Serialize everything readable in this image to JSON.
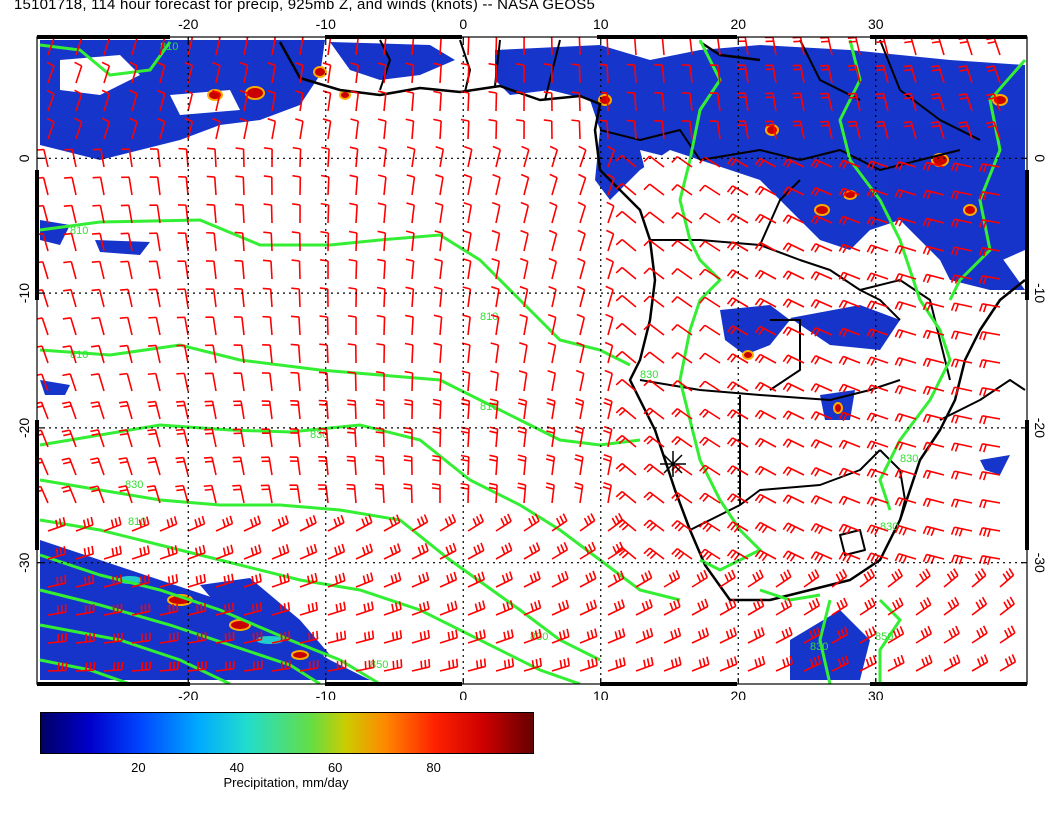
{
  "title": "15101718, 114 hour forecast for precip, 925mb Z, and winds (knots) -- NASA GEOS5",
  "map": {
    "region": "Southern Africa / South Atlantic",
    "lon_range": [
      -31,
      41
    ],
    "lat_range": [
      -39,
      9
    ],
    "lon_ticks": [
      "-20",
      "-10",
      "0",
      "10",
      "20",
      "30"
    ],
    "lat_ticks": [
      "0",
      "-10",
      "-20",
      "-30"
    ],
    "contour_labels": [
      "810",
      "810",
      "830",
      "830",
      "810",
      "810",
      "830",
      "830",
      "810",
      "830",
      "850",
      "830",
      "850",
      "830",
      "810"
    ],
    "colors": {
      "wind_barbs": "#ff0000",
      "contours": "#33dd33",
      "coastlines": "#000000",
      "precip_low": "#0000cc",
      "precip_high": "#660000"
    }
  },
  "colorbar": {
    "ticks": [
      "20",
      "40",
      "60",
      "80"
    ],
    "tick_values": [
      20,
      40,
      60,
      80
    ],
    "range": [
      0,
      100
    ],
    "label": "Precipitation, mm/day"
  }
}
